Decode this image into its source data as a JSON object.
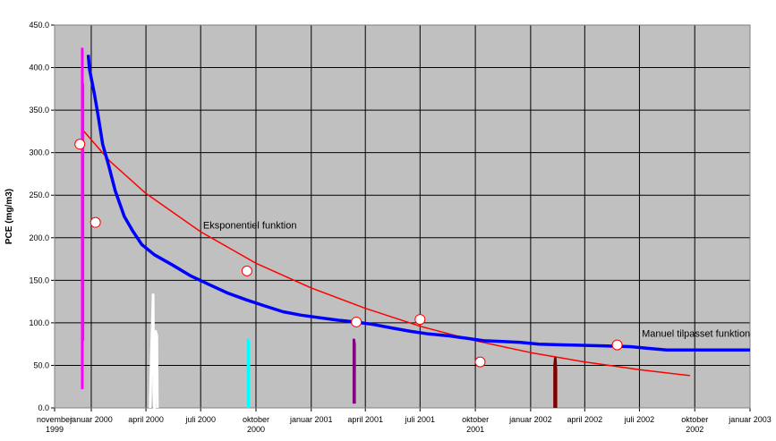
{
  "chart_data": {
    "type": "line",
    "ylabel": "PCE (mg/m3)",
    "ylim": [
      0,
      450
    ],
    "yticks": [
      "0.0",
      "50.0",
      "100.0",
      "150.0",
      "200.0",
      "250.0",
      "300.0",
      "350.0",
      "400.0",
      "450.0"
    ],
    "x_ticks": [
      {
        "date": "1999-11-01",
        "label": [
          "november",
          "1999"
        ]
      },
      {
        "date": "2000-01-01",
        "label": [
          "januar 2000"
        ]
      },
      {
        "date": "2000-04-01",
        "label": [
          "april 2000"
        ]
      },
      {
        "date": "2000-07-01",
        "label": [
          "juli 2000"
        ]
      },
      {
        "date": "2000-10-01",
        "label": [
          "oktober",
          "2000"
        ]
      },
      {
        "date": "2001-01-01",
        "label": [
          "januar 2001"
        ]
      },
      {
        "date": "2001-04-01",
        "label": [
          "april 2001"
        ]
      },
      {
        "date": "2001-07-01",
        "label": [
          "juli 2001"
        ]
      },
      {
        "date": "2001-10-01",
        "label": [
          "oktober",
          "2001"
        ]
      },
      {
        "date": "2002-01-01",
        "label": [
          "januar 2002"
        ]
      },
      {
        "date": "2002-04-01",
        "label": [
          "april 2002"
        ]
      },
      {
        "date": "2002-07-01",
        "label": [
          "juli 2002"
        ]
      },
      {
        "date": "2002-10-01",
        "label": [
          "oktober",
          "2002"
        ]
      },
      {
        "date": "2003-01-01",
        "label": [
          "januar 2003"
        ]
      }
    ],
    "grid": true,
    "colors": {
      "plot_bg": "#c0c0c0",
      "grid": "#000000",
      "exp": "#ff0000",
      "manual": "#0000ff",
      "marker_fill": "#ffffff",
      "marker_edge": "#ff0000"
    },
    "annotations": [
      {
        "text": "Eksponentiel funktion",
        "date": "2000-07-05",
        "y": 215
      },
      {
        "text": "Manuel tilpasset funktion",
        "date": "2002-07-05",
        "y": 88
      }
    ],
    "series": [
      {
        "key": "measured",
        "style": "markers",
        "points": [
          {
            "x": "1999-12-13",
            "y": 310
          },
          {
            "x": "2000-01-08",
            "y": 218
          },
          {
            "x": "2000-09-16",
            "y": 161
          },
          {
            "x": "2001-03-17",
            "y": 101
          },
          {
            "x": "2001-07-01",
            "y": 104
          },
          {
            "x": "2001-10-09",
            "y": 54
          },
          {
            "x": "2002-05-25",
            "y": 74
          }
        ]
      },
      {
        "key": "exponential",
        "style": "line",
        "color": "#ff0000",
        "points": [
          {
            "x": "1999-12-20",
            "y": 325
          },
          {
            "x": "2000-02-01",
            "y": 290
          },
          {
            "x": "2000-04-01",
            "y": 252
          },
          {
            "x": "2000-07-01",
            "y": 207
          },
          {
            "x": "2000-10-01",
            "y": 170
          },
          {
            "x": "2001-01-01",
            "y": 141
          },
          {
            "x": "2001-04-01",
            "y": 117
          },
          {
            "x": "2001-07-01",
            "y": 96
          },
          {
            "x": "2001-10-01",
            "y": 79
          },
          {
            "x": "2002-01-01",
            "y": 65
          },
          {
            "x": "2002-04-01",
            "y": 54
          },
          {
            "x": "2002-07-01",
            "y": 45
          },
          {
            "x": "2002-09-23",
            "y": 38
          }
        ]
      },
      {
        "key": "manual",
        "style": "line",
        "color": "#0000ff",
        "points": [
          {
            "x": "1999-12-27",
            "y": 415
          },
          {
            "x": "1999-12-29",
            "y": 398
          },
          {
            "x": "2000-01-06",
            "y": 370
          },
          {
            "x": "2000-01-12",
            "y": 345
          },
          {
            "x": "2000-01-20",
            "y": 310
          },
          {
            "x": "2000-01-30",
            "y": 285
          },
          {
            "x": "2000-02-10",
            "y": 255
          },
          {
            "x": "2000-02-25",
            "y": 225
          },
          {
            "x": "2000-03-10",
            "y": 208
          },
          {
            "x": "2000-03-25",
            "y": 192
          },
          {
            "x": "2000-04-15",
            "y": 180
          },
          {
            "x": "2000-05-15",
            "y": 168
          },
          {
            "x": "2000-06-15",
            "y": 155
          },
          {
            "x": "2000-07-15",
            "y": 145
          },
          {
            "x": "2000-08-15",
            "y": 135
          },
          {
            "x": "2000-09-15",
            "y": 127
          },
          {
            "x": "2000-10-15",
            "y": 120
          },
          {
            "x": "2000-11-15",
            "y": 113
          },
          {
            "x": "2000-12-15",
            "y": 109
          },
          {
            "x": "2001-01-15",
            "y": 106
          },
          {
            "x": "2001-02-15",
            "y": 103
          },
          {
            "x": "2001-03-15",
            "y": 101
          },
          {
            "x": "2001-04-15",
            "y": 98
          },
          {
            "x": "2001-05-15",
            "y": 94
          },
          {
            "x": "2001-06-15",
            "y": 90
          },
          {
            "x": "2001-07-15",
            "y": 87
          },
          {
            "x": "2001-08-15",
            "y": 85
          },
          {
            "x": "2001-09-15",
            "y": 82
          },
          {
            "x": "2001-10-15",
            "y": 79
          },
          {
            "x": "2001-11-15",
            "y": 78
          },
          {
            "x": "2001-12-15",
            "y": 77
          },
          {
            "x": "2002-01-15",
            "y": 75
          },
          {
            "x": "2002-03-01",
            "y": 74
          },
          {
            "x": "2002-05-01",
            "y": 73
          },
          {
            "x": "2002-06-15",
            "y": 72
          },
          {
            "x": "2002-07-15",
            "y": 70
          },
          {
            "x": "2002-08-15",
            "y": 68
          },
          {
            "x": "2002-09-15",
            "y": 68
          },
          {
            "x": "2002-11-01",
            "y": 68
          },
          {
            "x": "2003-01-01",
            "y": 68
          }
        ]
      },
      {
        "key": "magenta-spike",
        "style": "spike",
        "color": "#ff00ff",
        "points": [
          {
            "x": "1999-12-17",
            "y": 22
          },
          {
            "x": "1999-12-17",
            "y": 422
          },
          {
            "x": "1999-12-18",
            "y": 80
          },
          {
            "x": "1999-12-18",
            "y": 380
          },
          {
            "x": "1999-12-17",
            "y": 22
          }
        ]
      },
      {
        "key": "white-spike",
        "style": "spike",
        "color": "#ffffff",
        "points": [
          {
            "x": "2000-04-08",
            "y": 0
          },
          {
            "x": "2000-04-10",
            "y": 60
          },
          {
            "x": "2000-04-12",
            "y": 110
          },
          {
            "x": "2000-04-13",
            "y": 133
          },
          {
            "x": "2000-04-14",
            "y": 20
          },
          {
            "x": "2000-04-15",
            "y": 0
          },
          {
            "x": "2000-04-17",
            "y": 90
          },
          {
            "x": "2000-04-19",
            "y": 85
          },
          {
            "x": "2000-04-20",
            "y": 0
          }
        ]
      },
      {
        "key": "cyan-spike",
        "style": "spike",
        "color": "#00ffff",
        "points": [
          {
            "x": "2000-09-18",
            "y": 0
          },
          {
            "x": "2000-09-18",
            "y": 80
          },
          {
            "x": "2000-09-19",
            "y": 75
          },
          {
            "x": "2000-09-19",
            "y": 0
          }
        ]
      },
      {
        "key": "purple-spike",
        "style": "spike",
        "color": "#800080",
        "points": [
          {
            "x": "2001-03-13",
            "y": 5
          },
          {
            "x": "2001-03-13",
            "y": 80
          },
          {
            "x": "2001-03-14",
            "y": 75
          },
          {
            "x": "2001-03-14",
            "y": 5
          }
        ]
      },
      {
        "key": "darkred-spike",
        "style": "spike",
        "color": "#800000",
        "points": [
          {
            "x": "2002-02-10",
            "y": 0
          },
          {
            "x": "2002-02-10",
            "y": 50
          },
          {
            "x": "2002-02-11",
            "y": 58
          },
          {
            "x": "2002-02-12",
            "y": 45
          },
          {
            "x": "2002-02-12",
            "y": 0
          }
        ]
      }
    ]
  }
}
